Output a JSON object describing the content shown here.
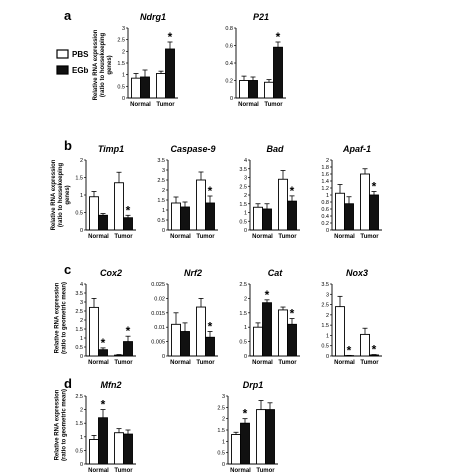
{
  "legend": [
    {
      "label": "PBS",
      "color": "#ffffff"
    },
    {
      "label": "EGb",
      "color": "#111111"
    }
  ],
  "panels": [
    {
      "letter": "a",
      "ylabel": [
        "Relative RNA expression",
        "(ratio to housekeeping",
        "genes)"
      ]
    },
    {
      "letter": "b",
      "ylabel": [
        "Relative RNA expression",
        "(ratio to housekeeping",
        "genes)"
      ]
    },
    {
      "letter": "c",
      "ylabel": [
        "Relative RNA expression",
        "(ratio to geometric mean)"
      ]
    },
    {
      "letter": "d",
      "ylabel": [
        "Relative RNA expression",
        "(ratio to geometric mean)"
      ]
    }
  ],
  "chart_data": [
    {
      "type": "bar",
      "panel": "a",
      "title": "Ndrg1",
      "categories": [
        "Normal",
        "Tumor"
      ],
      "ylim": [
        0,
        3
      ],
      "yticks": [
        "0",
        "0.5",
        "1",
        "1.5",
        "2",
        "2.5",
        "3"
      ],
      "series": [
        {
          "name": "PBS",
          "values": [
            0.85,
            1.05
          ],
          "errors": [
            0.2,
            0.1
          ]
        },
        {
          "name": "EGb",
          "values": [
            0.9,
            2.1
          ],
          "errors": [
            0.3,
            0.3
          ]
        }
      ],
      "significant": [
        false,
        true
      ]
    },
    {
      "type": "bar",
      "panel": "a",
      "title": "P21",
      "categories": [
        "Normal",
        "Tumor"
      ],
      "ylim": [
        0,
        0.8
      ],
      "yticks": [
        "0",
        "0.2",
        "0.4",
        "0.6",
        "0.8"
      ],
      "series": [
        {
          "name": "PBS",
          "values": [
            0.2,
            0.18
          ],
          "errors": [
            0.05,
            0.03
          ]
        },
        {
          "name": "EGb",
          "values": [
            0.2,
            0.58
          ],
          "errors": [
            0.04,
            0.06
          ]
        }
      ],
      "significant": [
        false,
        true
      ]
    },
    {
      "type": "bar",
      "panel": "b",
      "title": "Timp1",
      "categories": [
        "Normal",
        "Tumor"
      ],
      "ylim": [
        0,
        2
      ],
      "yticks": [
        "0",
        "0.5",
        "1",
        "1.5",
        "2"
      ],
      "series": [
        {
          "name": "PBS",
          "values": [
            0.95,
            1.35
          ],
          "errors": [
            0.15,
            0.3
          ]
        },
        {
          "name": "EGb",
          "values": [
            0.42,
            0.35
          ],
          "errors": [
            0.05,
            0.07
          ]
        }
      ],
      "significant": [
        false,
        true
      ]
    },
    {
      "type": "bar",
      "panel": "b",
      "title": "Caspase-9",
      "categories": [
        "Normal",
        "Tumor"
      ],
      "ylim": [
        0,
        3.5
      ],
      "yticks": [
        "0",
        "0.5",
        "1",
        "1.5",
        "2",
        "2.5",
        "3",
        "3.5"
      ],
      "series": [
        {
          "name": "PBS",
          "values": [
            1.35,
            2.5
          ],
          "errors": [
            0.3,
            0.4
          ]
        },
        {
          "name": "EGb",
          "values": [
            1.15,
            1.35
          ],
          "errors": [
            0.25,
            0.35
          ]
        }
      ],
      "significant": [
        false,
        true
      ]
    },
    {
      "type": "bar",
      "panel": "b",
      "title": "Bad",
      "categories": [
        "Normal",
        "Tumor"
      ],
      "ylim": [
        0,
        4
      ],
      "yticks": [
        "0",
        "0.5",
        "1",
        "1.5",
        "2",
        "2.5",
        "3",
        "3.5",
        "4"
      ],
      "series": [
        {
          "name": "PBS",
          "values": [
            1.3,
            2.9
          ],
          "errors": [
            0.2,
            0.5
          ]
        },
        {
          "name": "EGb",
          "values": [
            1.2,
            1.65
          ],
          "errors": [
            0.3,
            0.3
          ]
        }
      ],
      "significant": [
        false,
        true
      ]
    },
    {
      "type": "bar",
      "panel": "b",
      "title": "Apaf-1",
      "categories": [
        "Normal",
        "Tumor"
      ],
      "ylim": [
        0,
        2
      ],
      "yticks": [
        "0",
        "0.2",
        "0.4",
        "0.6",
        "0.8",
        "1",
        "1.2",
        "1.4",
        "1.6",
        "1.8",
        "2"
      ],
      "series": [
        {
          "name": "PBS",
          "values": [
            1.05,
            1.6
          ],
          "errors": [
            0.25,
            0.15
          ]
        },
        {
          "name": "EGb",
          "values": [
            0.75,
            1.0
          ],
          "errors": [
            0.2,
            0.1
          ]
        }
      ],
      "significant": [
        false,
        true
      ]
    },
    {
      "type": "bar",
      "panel": "c",
      "title": "Cox2",
      "categories": [
        "Normal",
        "Tumor"
      ],
      "ylim": [
        0,
        4
      ],
      "yticks": [
        "0",
        "0.5",
        "1",
        "1.5",
        "2",
        "2.5",
        "3",
        "3.5",
        "4"
      ],
      "series": [
        {
          "name": "PBS",
          "values": [
            2.7,
            0.05
          ],
          "errors": [
            0.5,
            0.03
          ]
        },
        {
          "name": "EGb",
          "values": [
            0.35,
            0.8
          ],
          "errors": [
            0.1,
            0.3
          ]
        }
      ],
      "significant": [
        true,
        true
      ]
    },
    {
      "type": "bar",
      "panel": "c",
      "title": "Nrf2",
      "categories": [
        "Normal",
        "Tumor"
      ],
      "ylim": [
        0,
        0.025
      ],
      "yticks": [
        "0",
        "0.005",
        "0.01",
        "0.015",
        "0.02",
        "0.025"
      ],
      "series": [
        {
          "name": "PBS",
          "values": [
            0.011,
            0.017
          ],
          "errors": [
            0.004,
            0.003
          ]
        },
        {
          "name": "EGb",
          "values": [
            0.0085,
            0.0065
          ],
          "errors": [
            0.003,
            0.002
          ]
        }
      ],
      "significant": [
        false,
        true
      ]
    },
    {
      "type": "bar",
      "panel": "c",
      "title": "Cat",
      "categories": [
        "Normal",
        "Tumor"
      ],
      "ylim": [
        0,
        2.5
      ],
      "yticks": [
        "0",
        "0.5",
        "1",
        "1.5",
        "2",
        "2.5"
      ],
      "series": [
        {
          "name": "PBS",
          "values": [
            1.0,
            1.6
          ],
          "errors": [
            0.15,
            0.1
          ]
        },
        {
          "name": "EGb",
          "values": [
            1.85,
            1.1
          ],
          "errors": [
            0.1,
            0.2
          ]
        }
      ],
      "significant": [
        true,
        true
      ]
    },
    {
      "type": "bar",
      "panel": "c",
      "title": "Nox3",
      "categories": [
        "Normal",
        "Tumor"
      ],
      "ylim": [
        0,
        3.5
      ],
      "yticks": [
        "0",
        "0.5",
        "1",
        "1.5",
        "2",
        "2.5",
        "3",
        "3.5"
      ],
      "series": [
        {
          "name": "PBS",
          "values": [
            2.4,
            1.05
          ],
          "errors": [
            0.5,
            0.3
          ]
        },
        {
          "name": "EGb",
          "values": [
            0.02,
            0.05
          ],
          "errors": [
            0.01,
            0.02
          ]
        }
      ],
      "significant": [
        true,
        true
      ]
    },
    {
      "type": "bar",
      "panel": "d",
      "title": "Mfn2",
      "categories": [
        "Normal",
        "Tumor"
      ],
      "ylim": [
        0,
        2.5
      ],
      "yticks": [
        "0",
        "0.5",
        "1",
        "1.5",
        "2",
        "2.5"
      ],
      "series": [
        {
          "name": "PBS",
          "values": [
            0.9,
            1.15
          ],
          "errors": [
            0.15,
            0.15
          ]
        },
        {
          "name": "EGb",
          "values": [
            1.7,
            1.1
          ],
          "errors": [
            0.3,
            0.15
          ]
        }
      ],
      "significant": [
        true,
        false
      ]
    },
    {
      "type": "bar",
      "panel": "d",
      "title": "Drp1",
      "categories": [
        "Normal",
        "Tumor"
      ],
      "ylim": [
        0,
        3
      ],
      "yticks": [
        "0",
        "0.5",
        "1",
        "1.5",
        "2",
        "2.5",
        "3"
      ],
      "series": [
        {
          "name": "PBS",
          "values": [
            1.3,
            2.4
          ],
          "errors": [
            0.1,
            0.4
          ]
        },
        {
          "name": "EGb",
          "values": [
            1.8,
            2.4
          ],
          "errors": [
            0.2,
            0.3
          ]
        }
      ],
      "significant": [
        true,
        false
      ]
    }
  ]
}
